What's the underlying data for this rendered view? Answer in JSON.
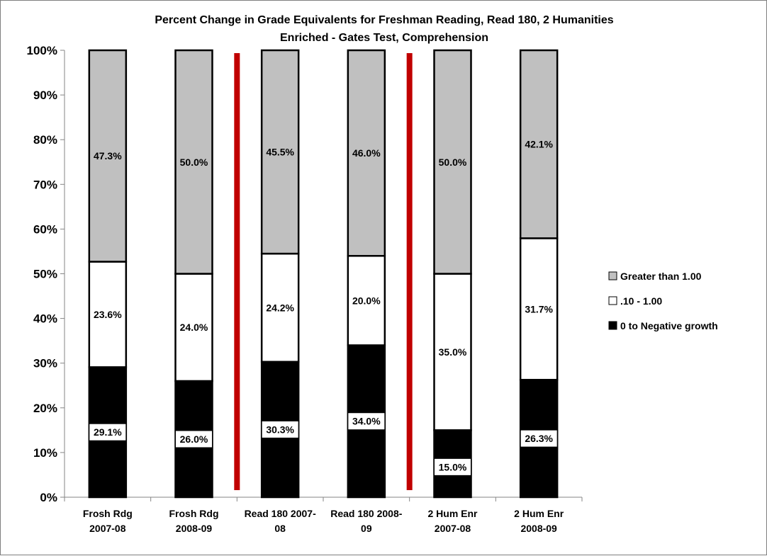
{
  "chart_data": {
    "type": "bar",
    "stacked": true,
    "percent_stacked": true,
    "title_lines": [
      "Percent Change in Grade Equivalents for  Freshman Reading, Read 180, 2 Humanities",
      "Enriched - Gates Test, Comprehension"
    ],
    "categories": [
      [
        "Frosh Rdg",
        "2007-08"
      ],
      [
        "Frosh Rdg",
        "2008-09"
      ],
      [
        "Read 180 2007-",
        "08"
      ],
      [
        "Read 180 2008-",
        "09"
      ],
      [
        "2 Hum Enr",
        "2007-08"
      ],
      [
        "2 Hum Enr",
        "2008-09"
      ]
    ],
    "series": [
      {
        "name": "0 to Negative growth",
        "color": "#000000",
        "values": [
          29.1,
          26.0,
          30.3,
          34.0,
          15.0,
          26.3
        ],
        "labels": [
          "29.1%",
          "26.0%",
          "30.3%",
          "34.0%",
          "15.0%",
          "26.3%"
        ]
      },
      {
        "name": ".10 - 1.00",
        "color": "#ffffff",
        "values": [
          23.6,
          24.0,
          24.2,
          20.0,
          35.0,
          31.7
        ],
        "labels": [
          "23.6%",
          "24.0%",
          "24.2%",
          "20.0%",
          "35.0%",
          "31.7%"
        ]
      },
      {
        "name": "Greater than 1.00",
        "color": "#c0c0c0",
        "values": [
          47.3,
          50.0,
          45.5,
          46.0,
          50.0,
          42.1
        ],
        "labels": [
          "47.3%",
          "50.0%",
          "45.5%",
          "46.0%",
          "50.0%",
          "42.1%"
        ]
      }
    ],
    "y_ticks": [
      "0%",
      "10%",
      "20%",
      "30%",
      "40%",
      "50%",
      "60%",
      "70%",
      "80%",
      "90%",
      "100%"
    ],
    "ylim": [
      0,
      100
    ],
    "grid": false,
    "legend_position": "right",
    "legend_order": [
      "Greater than 1.00",
      ".10 - 1.00",
      "0 to Negative growth"
    ],
    "separator_color": "#c00000",
    "separators_after_category": [
      1,
      3
    ]
  }
}
